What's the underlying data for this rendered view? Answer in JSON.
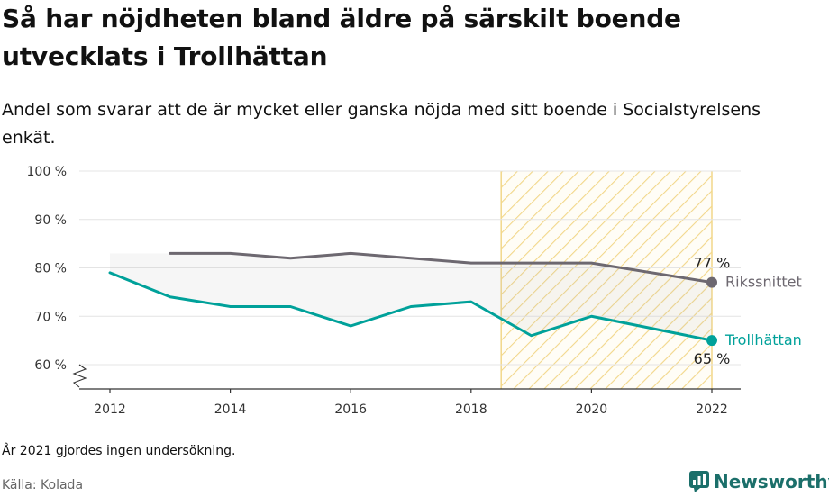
{
  "title": "Så har nöjdheten bland äldre på särskilt boende utvecklats i Trollhättan",
  "subtitle": "Andel som svarar att de är mycket eller ganska nöjda med sitt boende i Socialstyrelsens enkät.",
  "note": "År 2021 gjordes ingen undersökning.",
  "source": "Källa: Kolada",
  "brand": "Newsworthy",
  "colors": {
    "riksnittet": "#6d6870",
    "trollhattan": "#00a19a",
    "highlight": "#f2d78a",
    "grid": "#e4e4e4"
  },
  "chart_data": {
    "type": "line",
    "x_ticks": [
      "2012",
      "2014",
      "2016",
      "2018",
      "2020",
      "2022"
    ],
    "y_ticks": [
      "60 %",
      "70 %",
      "80 %",
      "90 %",
      "100 %"
    ],
    "ylim": [
      60,
      100
    ],
    "xlim": [
      2012,
      2022
    ],
    "highlight_range": [
      2018.5,
      2022
    ],
    "series": [
      {
        "name": "Rikssnittet",
        "end_label": "77 %",
        "x": [
          2013,
          2014,
          2015,
          2016,
          2017,
          2018,
          2019,
          2020,
          2022
        ],
        "values": [
          83,
          83,
          82,
          83,
          82,
          81,
          81,
          81,
          77
        ]
      },
      {
        "name": "Trollhättan",
        "end_label": "65 %",
        "x": [
          2012,
          2013,
          2014,
          2015,
          2016,
          2017,
          2018,
          2019,
          2020,
          2022
        ],
        "values": [
          79,
          74,
          72,
          72,
          68,
          72,
          73,
          66,
          70,
          65
        ]
      }
    ]
  }
}
